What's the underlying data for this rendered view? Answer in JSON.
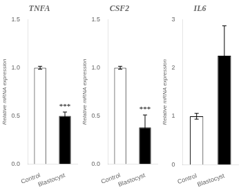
{
  "chart_data": [
    {
      "type": "bar",
      "title": "TNFA",
      "ylabel": "Relative mRNA expression",
      "categories": [
        "Control",
        "Blastocyst"
      ],
      "values": [
        1.0,
        0.5
      ],
      "errors": [
        0.015,
        0.04
      ],
      "colors": [
        "white",
        "black"
      ],
      "ylim": [
        0,
        1.5
      ],
      "yticks": [
        {
          "value": 0,
          "label": "0.0"
        },
        0.5,
        {
          "value": 1,
          "label": "1.0"
        },
        1.5
      ],
      "grid": false,
      "annotations": [
        {
          "text": "***",
          "category": "Blastocyst"
        }
      ]
    },
    {
      "type": "bar",
      "title": "CSF2",
      "ylabel": "Relative mRNA expression",
      "categories": [
        "Control",
        "Blastocyst"
      ],
      "values": [
        1.0,
        0.38
      ],
      "errors": [
        0.015,
        0.13
      ],
      "colors": [
        "white",
        "black"
      ],
      "ylim": [
        0,
        1.5
      ],
      "yticks": [
        {
          "value": 0,
          "label": "0.0"
        },
        0.5,
        {
          "value": 1,
          "label": "1.0"
        },
        1.5
      ],
      "grid": false,
      "annotations": [
        {
          "text": "***",
          "category": "Blastocyst"
        }
      ]
    },
    {
      "type": "bar",
      "title": "IL6",
      "ylabel": "Relative mRNA expression",
      "categories": [
        "Control",
        "Blastocyst"
      ],
      "values": [
        1.0,
        2.25
      ],
      "errors": [
        0.06,
        0.62
      ],
      "colors": [
        "white",
        "black"
      ],
      "ylim": [
        0,
        3
      ],
      "yticks": [
        0,
        1,
        2,
        3
      ],
      "grid": false
    }
  ]
}
